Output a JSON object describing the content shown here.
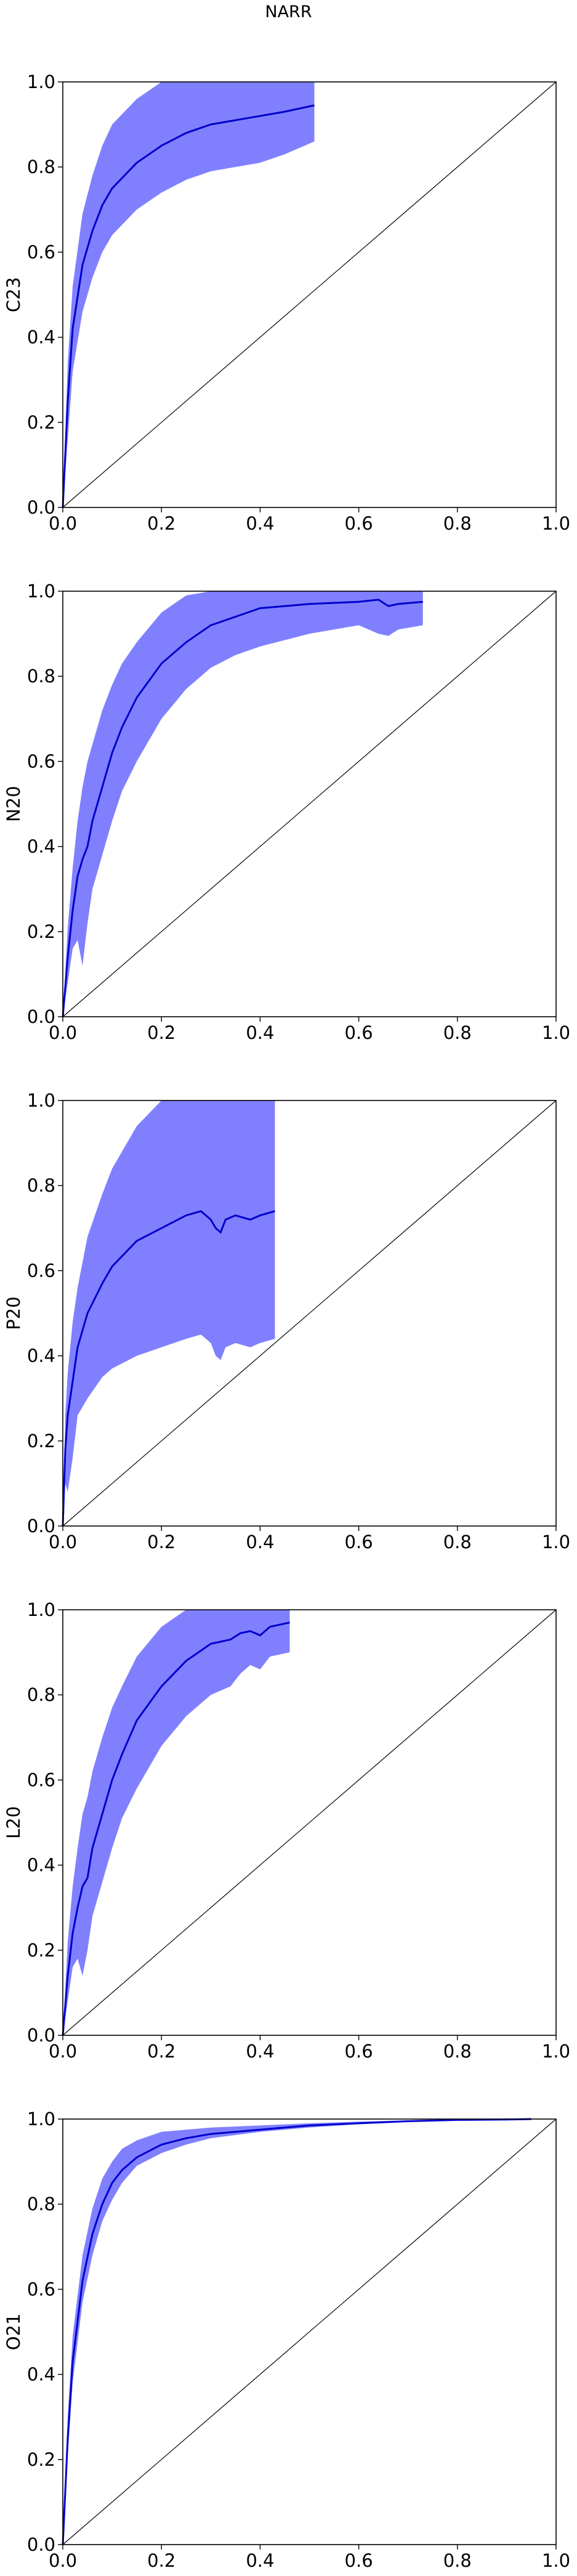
{
  "figure": {
    "title": "NARR"
  },
  "chart_data": [
    {
      "type": "line",
      "ylabel": "C23",
      "xlim": [
        0,
        1
      ],
      "ylim": [
        0,
        1
      ],
      "x_ticks": [
        "0.0",
        "0.2",
        "0.4",
        "0.6",
        "0.8",
        "1.0"
      ],
      "y_ticks": [
        "0.0",
        "0.2",
        "0.4",
        "0.6",
        "0.8",
        "1.0"
      ],
      "diagonal": true,
      "line_color": "#0000cc",
      "band_color": "#8080ff",
      "series": [
        {
          "x": [
            0,
            0.01,
            0.02,
            0.04,
            0.06,
            0.08,
            0.1,
            0.15,
            0.2,
            0.25,
            0.3,
            0.35,
            0.4,
            0.45,
            0.51
          ],
          "y": [
            0,
            0.25,
            0.42,
            0.57,
            0.65,
            0.71,
            0.75,
            0.81,
            0.85,
            0.88,
            0.9,
            0.91,
            0.92,
            0.93,
            0.945
          ],
          "lower": [
            0,
            0.16,
            0.32,
            0.46,
            0.54,
            0.6,
            0.64,
            0.7,
            0.74,
            0.77,
            0.79,
            0.8,
            0.81,
            0.83,
            0.86
          ],
          "upper": [
            0,
            0.34,
            0.52,
            0.69,
            0.78,
            0.85,
            0.9,
            0.96,
            1,
            1,
            1,
            1,
            1,
            1,
            1
          ]
        }
      ]
    },
    {
      "type": "line",
      "ylabel": "N20",
      "xlim": [
        0,
        1
      ],
      "ylim": [
        0,
        1
      ],
      "x_ticks": [
        "0.0",
        "0.2",
        "0.4",
        "0.6",
        "0.8",
        "1.0"
      ],
      "y_ticks": [
        "0.0",
        "0.2",
        "0.4",
        "0.6",
        "0.8",
        "1.0"
      ],
      "diagonal": true,
      "line_color": "#0000cc",
      "band_color": "#8080ff",
      "series": [
        {
          "x": [
            0,
            0.01,
            0.02,
            0.03,
            0.04,
            0.05,
            0.06,
            0.08,
            0.1,
            0.12,
            0.15,
            0.2,
            0.25,
            0.3,
            0.35,
            0.4,
            0.5,
            0.6,
            0.64,
            0.66,
            0.68,
            0.73
          ],
          "y": [
            0,
            0.14,
            0.25,
            0.33,
            0.37,
            0.4,
            0.46,
            0.54,
            0.62,
            0.68,
            0.75,
            0.83,
            0.88,
            0.92,
            0.94,
            0.96,
            0.97,
            0.975,
            0.98,
            0.965,
            0.97,
            0.975
          ],
          "lower": [
            0,
            0.08,
            0.16,
            0.18,
            0.12,
            0.22,
            0.3,
            0.38,
            0.46,
            0.53,
            0.6,
            0.7,
            0.77,
            0.82,
            0.85,
            0.87,
            0.9,
            0.92,
            0.9,
            0.895,
            0.91,
            0.92
          ],
          "upper": [
            0,
            0.21,
            0.35,
            0.46,
            0.54,
            0.6,
            0.64,
            0.72,
            0.78,
            0.83,
            0.88,
            0.95,
            0.99,
            1,
            1,
            1,
            1,
            1,
            1,
            1,
            1,
            1
          ]
        }
      ]
    },
    {
      "type": "line",
      "ylabel": "P20",
      "xlim": [
        0,
        1
      ],
      "ylim": [
        0,
        1
      ],
      "x_ticks": [
        "0.0",
        "0.2",
        "0.4",
        "0.6",
        "0.8",
        "1.0"
      ],
      "y_ticks": [
        "0.0",
        "0.2",
        "0.4",
        "0.6",
        "0.8",
        "1.0"
      ],
      "diagonal": true,
      "line_color": "#0000cc",
      "band_color": "#8080ff",
      "series": [
        {
          "x": [
            0,
            0.005,
            0.01,
            0.02,
            0.03,
            0.05,
            0.08,
            0.1,
            0.15,
            0.2,
            0.25,
            0.28,
            0.3,
            0.31,
            0.32,
            0.33,
            0.35,
            0.38,
            0.4,
            0.43
          ],
          "y": [
            0,
            0.18,
            0.26,
            0.34,
            0.42,
            0.5,
            0.57,
            0.61,
            0.67,
            0.7,
            0.73,
            0.74,
            0.72,
            0.7,
            0.69,
            0.72,
            0.73,
            0.72,
            0.73,
            0.74
          ],
          "lower": [
            0,
            0.1,
            0.08,
            0.16,
            0.26,
            0.3,
            0.35,
            0.37,
            0.4,
            0.42,
            0.44,
            0.45,
            0.43,
            0.4,
            0.39,
            0.42,
            0.43,
            0.42,
            0.43,
            0.44
          ],
          "upper": [
            0,
            0.26,
            0.36,
            0.48,
            0.56,
            0.68,
            0.78,
            0.84,
            0.94,
            1,
            1,
            1,
            1,
            1,
            1,
            1,
            1,
            1,
            1,
            1
          ]
        }
      ]
    },
    {
      "type": "line",
      "ylabel": "L20",
      "xlim": [
        0,
        1
      ],
      "ylim": [
        0,
        1
      ],
      "x_ticks": [
        "0.0",
        "0.2",
        "0.4",
        "0.6",
        "0.8",
        "1.0"
      ],
      "y_ticks": [
        "0.0",
        "0.2",
        "0.4",
        "0.6",
        "0.8",
        "1.0"
      ],
      "diagonal": true,
      "line_color": "#0000cc",
      "band_color": "#8080ff",
      "series": [
        {
          "x": [
            0,
            0.01,
            0.02,
            0.03,
            0.04,
            0.05,
            0.06,
            0.08,
            0.1,
            0.12,
            0.15,
            0.2,
            0.25,
            0.3,
            0.34,
            0.36,
            0.38,
            0.4,
            0.42,
            0.46
          ],
          "y": [
            0,
            0.14,
            0.24,
            0.3,
            0.35,
            0.37,
            0.44,
            0.52,
            0.6,
            0.66,
            0.74,
            0.82,
            0.88,
            0.92,
            0.93,
            0.945,
            0.95,
            0.94,
            0.96,
            0.97
          ],
          "lower": [
            0,
            0.08,
            0.16,
            0.18,
            0.14,
            0.2,
            0.28,
            0.36,
            0.44,
            0.51,
            0.58,
            0.68,
            0.75,
            0.8,
            0.82,
            0.85,
            0.87,
            0.86,
            0.89,
            0.9
          ],
          "upper": [
            0,
            0.22,
            0.35,
            0.44,
            0.52,
            0.56,
            0.62,
            0.7,
            0.77,
            0.82,
            0.89,
            0.96,
            1,
            1,
            1,
            1,
            1,
            1,
            1,
            1
          ]
        }
      ]
    },
    {
      "type": "line",
      "ylabel": "O21",
      "xlim": [
        0,
        1
      ],
      "ylim": [
        0,
        1
      ],
      "x_ticks": [
        "0.0",
        "0.2",
        "0.4",
        "0.6",
        "0.8",
        "1.0"
      ],
      "y_ticks": [
        "0.0",
        "0.2",
        "0.4",
        "0.6",
        "0.8",
        "1.0"
      ],
      "diagonal": true,
      "line_color": "#0000cc",
      "band_color": "#8080ff",
      "series": [
        {
          "x": [
            0,
            0.01,
            0.02,
            0.04,
            0.06,
            0.08,
            0.1,
            0.12,
            0.15,
            0.2,
            0.25,
            0.3,
            0.4,
            0.5,
            0.6,
            0.7,
            0.8,
            0.9,
            0.95
          ],
          "y": [
            0,
            0.25,
            0.43,
            0.62,
            0.73,
            0.8,
            0.85,
            0.88,
            0.91,
            0.94,
            0.955,
            0.965,
            0.975,
            0.985,
            0.99,
            0.995,
            0.998,
            0.999,
            1
          ],
          "lower": [
            0,
            0.21,
            0.38,
            0.57,
            0.68,
            0.76,
            0.81,
            0.85,
            0.89,
            0.92,
            0.94,
            0.955,
            0.97,
            0.98,
            0.988,
            0.993,
            0.997,
            0.999,
            1
          ],
          "upper": [
            0,
            0.3,
            0.49,
            0.68,
            0.79,
            0.86,
            0.9,
            0.93,
            0.95,
            0.97,
            0.975,
            0.98,
            0.985,
            0.99,
            0.994,
            0.997,
            0.999,
            1,
            1
          ]
        }
      ]
    }
  ]
}
